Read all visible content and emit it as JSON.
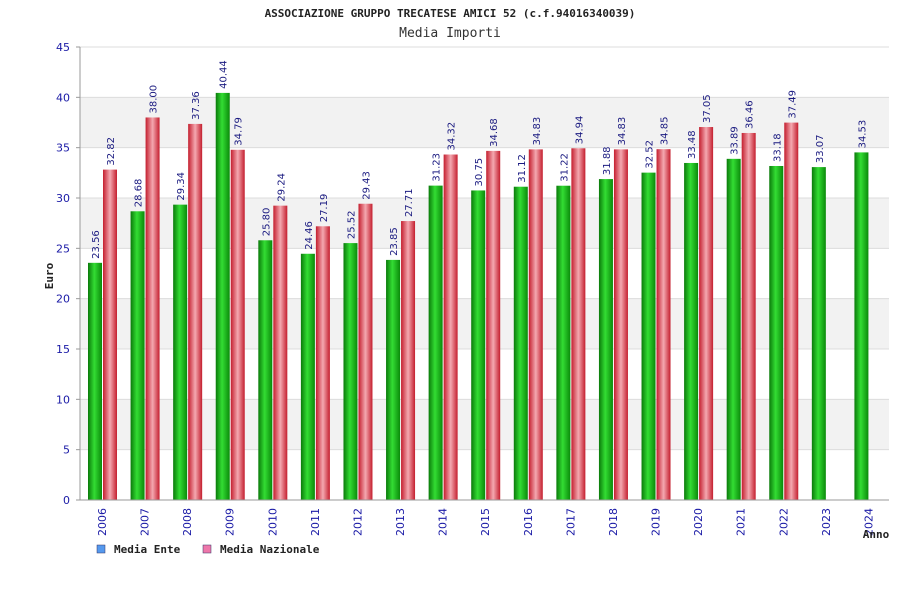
{
  "chart_data": {
    "type": "bar",
    "title": "ASSOCIAZIONE GRUPPO TRECATESE AMICI 52 (c.f.94016340039)",
    "subtitle": "Media Importi",
    "xlabel": "Anno",
    "ylabel": "Euro",
    "ylim": [
      0,
      45
    ],
    "yticks": [
      0,
      5,
      10,
      15,
      20,
      25,
      30,
      35,
      40,
      45
    ],
    "categories": [
      "2006",
      "2007",
      "2008",
      "2009",
      "2010",
      "2011",
      "2012",
      "2013",
      "2014",
      "2015",
      "2016",
      "2017",
      "2018",
      "2019",
      "2020",
      "2021",
      "2022",
      "2023",
      "2024"
    ],
    "series": [
      {
        "name": "Media Ente",
        "color": "#22bb22",
        "values": [
          23.56,
          28.68,
          29.34,
          40.44,
          25.8,
          24.46,
          25.52,
          23.85,
          31.23,
          30.75,
          31.12,
          31.22,
          31.88,
          32.52,
          33.48,
          33.89,
          33.18,
          33.07,
          34.53
        ],
        "labels": [
          "23.56",
          "28.68",
          "29.34",
          "40.44",
          "25.80",
          "24.46",
          "25.52",
          "23.85",
          "31.23",
          "30.75",
          "31.12",
          "31.22",
          "31.88",
          "32.52",
          "33.48",
          "33.89",
          "33.18",
          "33.07",
          "34.53"
        ]
      },
      {
        "name": "Media Nazionale",
        "color": "#e03344",
        "values": [
          32.82,
          38.0,
          37.36,
          34.79,
          29.24,
          27.19,
          29.43,
          27.71,
          34.32,
          34.68,
          34.83,
          34.94,
          34.83,
          34.85,
          37.05,
          36.46,
          37.49,
          null,
          null
        ],
        "labels": [
          "32.82",
          "38.00",
          "37.36",
          "34.79",
          "29.24",
          "27.19",
          "29.43",
          "27.71",
          "34.32",
          "34.68",
          "34.83",
          "34.94",
          "34.83",
          "34.85",
          "37.05",
          "36.46",
          "37.49",
          null,
          null
        ]
      }
    ],
    "legend": [
      {
        "name": "Media Ente",
        "color": "#5599ee"
      },
      {
        "name": "Media Nazionale",
        "color": "#ee77aa"
      }
    ],
    "legend_position": "bottom-left",
    "grid": true
  }
}
